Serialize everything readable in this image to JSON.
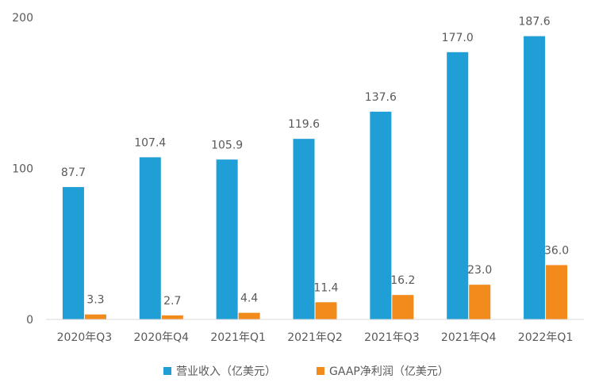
{
  "chart_data": {
    "type": "bar",
    "categories": [
      "2020年Q3",
      "2020年Q4",
      "2021年Q1",
      "2021年Q2",
      "2021年Q3",
      "2021年Q4",
      "2022年Q1"
    ],
    "series": [
      {
        "name": "营业收入（亿美元）",
        "color": "#1f9fd6",
        "values": [
          87.7,
          107.4,
          105.9,
          119.6,
          137.6,
          177.0,
          187.6
        ],
        "labels": [
          "87.7",
          "107.4",
          "105.9",
          "119.6",
          "137.6",
          "177.0",
          "187.6"
        ]
      },
      {
        "name": "GAAP净利润（亿美元）",
        "color": "#f28a1c",
        "values": [
          3.3,
          2.7,
          4.4,
          11.4,
          16.2,
          23.0,
          36.0
        ],
        "labels": [
          "3.3",
          "2.7",
          "4.4",
          "11.4",
          "16.2",
          "23.0",
          "36.0"
        ]
      }
    ],
    "ylim": [
      0,
      200
    ],
    "yticks": [
      "0",
      "100",
      "200"
    ],
    "title": "",
    "xlabel": "",
    "ylabel": "",
    "grid": false,
    "legend_position": "bottom"
  }
}
